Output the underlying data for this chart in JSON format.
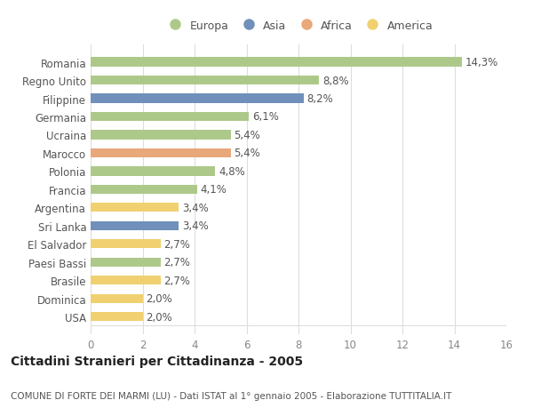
{
  "categories": [
    "USA",
    "Dominica",
    "Brasile",
    "Paesi Bassi",
    "El Salvador",
    "Sri Lanka",
    "Argentina",
    "Francia",
    "Polonia",
    "Marocco",
    "Ucraina",
    "Germania",
    "Filippine",
    "Regno Unito",
    "Romania"
  ],
  "values": [
    2.0,
    2.0,
    2.7,
    2.7,
    2.7,
    3.4,
    3.4,
    4.1,
    4.8,
    5.4,
    5.4,
    6.1,
    8.2,
    8.8,
    14.3
  ],
  "labels": [
    "2,0%",
    "2,0%",
    "2,7%",
    "2,7%",
    "2,7%",
    "3,4%",
    "3,4%",
    "4,1%",
    "4,8%",
    "5,4%",
    "5,4%",
    "6,1%",
    "8,2%",
    "8,8%",
    "14,3%"
  ],
  "continents": [
    "America",
    "America",
    "America",
    "Europa",
    "America",
    "Asia",
    "America",
    "Europa",
    "Europa",
    "Africa",
    "Europa",
    "Europa",
    "Asia",
    "Europa",
    "Europa"
  ],
  "continent_colors": {
    "Europa": "#adc98a",
    "Asia": "#7090bb",
    "Africa": "#e8a87a",
    "America": "#f0d070"
  },
  "legend_items": [
    "Europa",
    "Asia",
    "Africa",
    "America"
  ],
  "legend_colors": [
    "#adc98a",
    "#7090bb",
    "#e8a87a",
    "#f0d070"
  ],
  "xlim": [
    0,
    16
  ],
  "xticks": [
    0,
    2,
    4,
    6,
    8,
    10,
    12,
    14,
    16
  ],
  "title_bold": "Cittadini Stranieri per Cittadinanza - 2005",
  "subtitle": "COMUNE DI FORTE DEI MARMI (LU) - Dati ISTAT al 1° gennaio 2005 - Elaborazione TUTTITALIA.IT",
  "background_color": "#ffffff",
  "grid_color": "#dddddd",
  "bar_height": 0.5,
  "label_fontsize": 8.5,
  "title_fontsize": 10,
  "subtitle_fontsize": 7.5,
  "ytick_fontsize": 8.5,
  "xtick_fontsize": 8.5
}
